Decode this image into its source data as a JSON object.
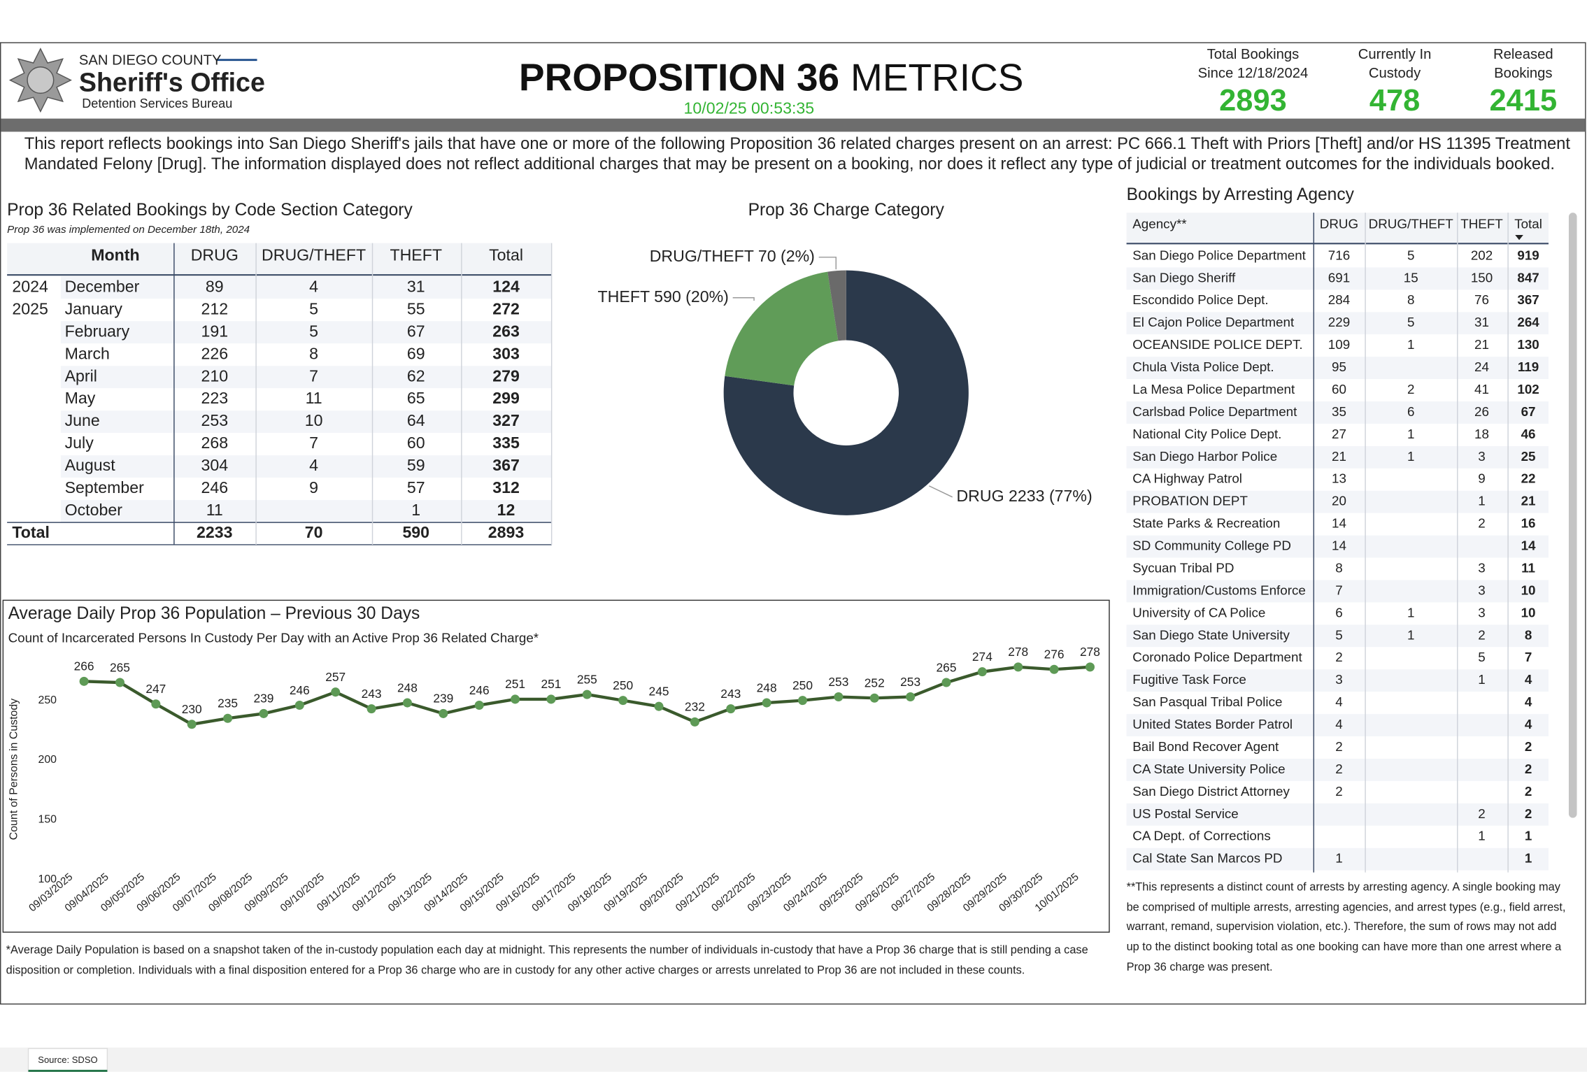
{
  "header": {
    "org_region": "SAN DIEGO COUNTY",
    "org_name": "Sheriff's Office",
    "org_unit": "Detention Services Bureau",
    "title": [
      "PROPOSITION 36",
      "METRICS"
    ],
    "timestamp": "10/02/25 00:53:35",
    "kpis": [
      {
        "label": [
          "Total Bookings",
          "Since 12/18/2024"
        ],
        "value": 2893
      },
      {
        "label": [
          "Currently In",
          "Custody"
        ],
        "value": 478
      },
      {
        "label": [
          "Released",
          "Bookings"
        ],
        "value": 2415
      }
    ],
    "kpi_color": "#33b433"
  },
  "description": "This report reflects bookings into San Diego Sheriff's jails that have one or more of the following Proposition 36 related charges present on an arrest: PC 666.1 Theft with Priors [Theft] and/or HS 11395 Treatment Mandated Felony [Drug]. The information displayed does not reflect additional charges that may be present on a booking, nor does it reflect any type of judicial or treatment outcomes for the individuals booked.",
  "bookings_table": {
    "title": "Prop 36 Related Bookings by Code Section Category",
    "subtitle": "Prop 36 was implemented on December 18th, 2024",
    "columns": [
      "Month",
      "DRUG",
      "DRUG/THEFT",
      "THEFT",
      "Total"
    ],
    "rows": [
      [
        "2024",
        "December",
        89,
        4,
        31,
        124
      ],
      [
        "2025",
        "January",
        212,
        5,
        55,
        272
      ],
      [
        null,
        "February",
        191,
        5,
        67,
        263
      ],
      [
        null,
        "March",
        226,
        8,
        69,
        303
      ],
      [
        null,
        "April",
        210,
        7,
        62,
        279
      ],
      [
        null,
        "May",
        223,
        11,
        65,
        299
      ],
      [
        null,
        "June",
        253,
        10,
        64,
        327
      ],
      [
        null,
        "July",
        268,
        7,
        60,
        335
      ],
      [
        null,
        "August",
        304,
        4,
        59,
        367
      ],
      [
        null,
        "September",
        246,
        9,
        57,
        312
      ],
      [
        null,
        "October",
        11,
        null,
        1,
        12
      ]
    ],
    "total": [
      "Total",
      2233,
      70,
      590,
      2893
    ]
  },
  "chart_data": [
    {
      "type": "donut",
      "title": "Prop 36 Charge Category",
      "values": [
        2233,
        590,
        70
      ],
      "value_labels": [
        "DRUG 2233 (77%)",
        "THEFT 590 (20%)",
        "DRUG/THEFT 70 (2%)"
      ],
      "colors": [
        "#2b394b",
        "#609c58",
        "#6a6a6a"
      ]
    },
    {
      "type": "line",
      "title": "Average Daily Prop 36 Population – Previous 30 Days",
      "subtitle": "Count of Incarcerated Persons In Custody Per Day with an Active Prop 36 Related Charge*",
      "y_label": "Count of Persons in Custody",
      "categories": [
        "09/03/2025",
        "09/04/2025",
        "09/05/2025",
        "09/06/2025",
        "09/07/2025",
        "09/08/2025",
        "09/09/2025",
        "09/10/2025",
        "09/11/2025",
        "09/12/2025",
        "09/13/2025",
        "09/14/2025",
        "09/15/2025",
        "09/16/2025",
        "09/17/2025",
        "09/18/2025",
        "09/19/2025",
        "09/20/2025",
        "09/21/2025",
        "09/22/2025",
        "09/23/2025",
        "09/24/2025",
        "09/25/2025",
        "09/26/2025",
        "09/27/2025",
        "09/28/2025",
        "09/29/2025",
        "09/30/2025",
        "10/01/2025"
      ],
      "values": [
        266,
        265,
        247,
        230,
        235,
        239,
        246,
        257,
        243,
        248,
        239,
        246,
        251,
        251,
        255,
        250,
        245,
        232,
        243,
        248,
        250,
        253,
        252,
        253,
        265,
        274,
        278,
        276,
        278
      ],
      "color": "#3a5a2c",
      "marker_color": "#5e9a56",
      "ylim": [
        100,
        280
      ],
      "yticks": [
        100,
        150,
        200,
        250
      ],
      "grid": false
    }
  ],
  "agency_table": {
    "title": "Bookings by Arresting Agency",
    "columns": [
      "Agency**",
      "DRUG",
      "DRUG/THEFT",
      "THEFT",
      "Total"
    ],
    "rows": [
      [
        "San Diego Police Department",
        716,
        5,
        202,
        919
      ],
      [
        "San Diego Sheriff",
        691,
        15,
        150,
        847
      ],
      [
        "Escondido Police Dept.",
        284,
        8,
        76,
        367
      ],
      [
        "El Cajon Police Department",
        229,
        5,
        31,
        264
      ],
      [
        "OCEANSIDE POLICE DEPT.",
        109,
        1,
        21,
        130
      ],
      [
        "Chula Vista Police Dept.",
        95,
        null,
        24,
        119
      ],
      [
        "La Mesa Police Department",
        60,
        2,
        41,
        102
      ],
      [
        "Carlsbad Police Department",
        35,
        6,
        26,
        67
      ],
      [
        "National City Police Dept.",
        27,
        1,
        18,
        46
      ],
      [
        "San Diego Harbor Police",
        21,
        1,
        3,
        25
      ],
      [
        "CA Highway Patrol",
        13,
        null,
        9,
        22
      ],
      [
        "PROBATION DEPT",
        20,
        null,
        1,
        21
      ],
      [
        "State Parks & Recreation",
        14,
        null,
        2,
        16
      ],
      [
        "SD Community College PD",
        14,
        null,
        null,
        14
      ],
      [
        "Sycuan Tribal PD",
        8,
        null,
        3,
        11
      ],
      [
        "Immigration/Customs Enforce",
        7,
        null,
        3,
        10
      ],
      [
        "University of CA Police",
        6,
        1,
        3,
        10
      ],
      [
        "San Diego State University",
        5,
        1,
        2,
        8
      ],
      [
        "Coronado Police Department",
        2,
        null,
        5,
        7
      ],
      [
        "Fugitive Task Force",
        3,
        null,
        1,
        4
      ],
      [
        "San Pasqual Tribal Police",
        4,
        null,
        null,
        4
      ],
      [
        "United States Border Patrol",
        4,
        null,
        null,
        4
      ],
      [
        "Bail Bond Recover Agent",
        2,
        null,
        null,
        2
      ],
      [
        "CA State University Police",
        2,
        null,
        null,
        2
      ],
      [
        "San Diego District Attorney",
        2,
        null,
        null,
        2
      ],
      [
        "US Postal Service",
        null,
        null,
        2,
        2
      ],
      [
        "CA Dept. of Corrections",
        null,
        null,
        1,
        1
      ],
      [
        "Cal State San Marcos PD",
        1,
        null,
        null,
        1
      ]
    ]
  },
  "footnotes": {
    "agency": "**This represents a distinct count of arrests by arresting agency. A single booking may be comprised of multiple arrests, arresting agencies, and arrest types (e.g., field arrest, warrant, remand, supervision violation, etc.). Therefore, the sum of rows may not add up to the distinct booking total as one booking can have more than one arrest where a Prop 36 charge was present.",
    "population": "*Average Daily Population is based on a snapshot taken of the in-custody population each day at midnight. This represents the number of individuals in-custody that have a Prop 36 charge that is still pending a case disposition or completion. Individuals with a final disposition entered for a Prop 36 charge who are in custody for any other active charges or arrests unrelated to Prop 36 are not included in these counts."
  },
  "tab": "Source: SDSO"
}
